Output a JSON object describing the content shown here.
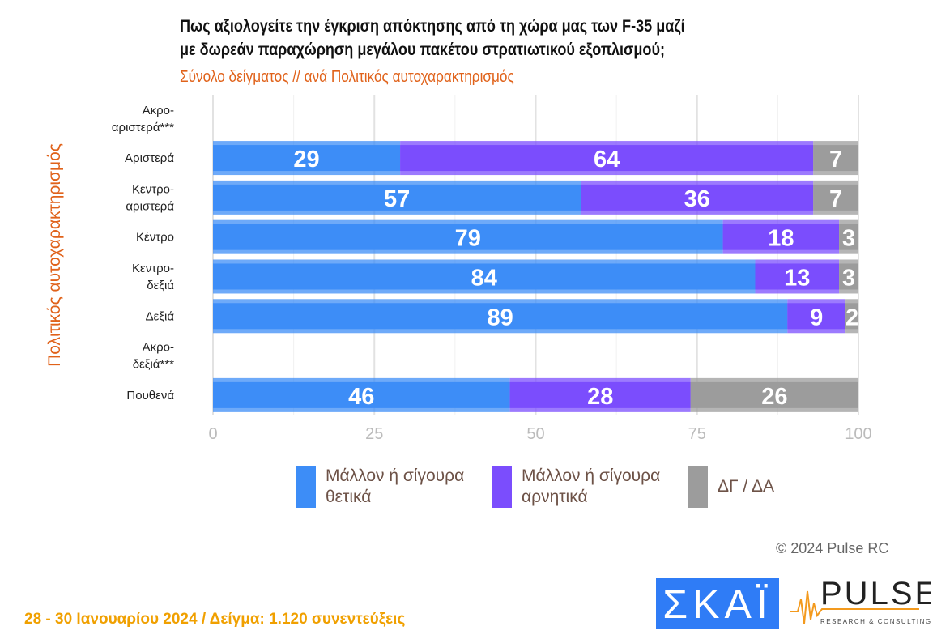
{
  "title_lines": [
    "Πως αξιολογείτε την έγκριση απόκτησης από τη χώρα μας των F-35 μαζί",
    "με δωρεάν παραχώρηση μεγάλου πακέτου στρατιωτικού εξοπλισμού;"
  ],
  "subtitle": "Σύνολο δείγματος // ανά Πολιτικός αυτοχαρακτηρισμός",
  "footer": "28 - 30  Ιανουαρίου  2024  /  Δείγμα:  1.120 συνεντεύξεις",
  "copyright": "© 2024 Pulse RC",
  "logos": {
    "skai": "ΣΚΑΪ",
    "pulse": "PULSE",
    "pulse_sub": "RESEARCH & CONSULTING"
  },
  "chart_data": {
    "type": "bar",
    "orientation": "horizontal",
    "stacked": true,
    "ylabel": "Πολιτικός αυτοχαρακτηρισμός",
    "xlim": [
      0,
      100
    ],
    "xticks": [
      "0",
      "25",
      "50",
      "75",
      "100"
    ],
    "grid": true,
    "legend_position": "bottom",
    "categories": [
      [
        "Ακρο-",
        "αριστερά***"
      ],
      [
        "Αριστερά"
      ],
      [
        "Κεντρο-",
        "αριστερά"
      ],
      [
        "Κέντρο"
      ],
      [
        "Κεντρο-",
        "δεξιά"
      ],
      [
        "Δεξιά"
      ],
      [
        "Ακρο-",
        "δεξιά***"
      ],
      [
        "Πουθενά"
      ]
    ],
    "series": [
      {
        "name": "Μάλλον ή σίγουρα θετικά",
        "legend_lines": [
          "Μάλλον ή σίγουρα",
          "θετικά"
        ],
        "color": "#3d8df7",
        "values": [
          null,
          29,
          57,
          79,
          84,
          89,
          null,
          46
        ]
      },
      {
        "name": "Μάλλον ή σίγουρα αρνητικά",
        "legend_lines": [
          "Μάλλον ή σίγουρα",
          "αρνητικά"
        ],
        "color": "#7b4dfd",
        "values": [
          null,
          64,
          36,
          18,
          13,
          9,
          null,
          28
        ]
      },
      {
        "name": "ΔΓ / ΔΑ",
        "legend_lines": [
          "ΔΓ / ΔΑ"
        ],
        "color": "#9c9c9c",
        "values": [
          null,
          7,
          7,
          3,
          3,
          2,
          null,
          26
        ]
      }
    ]
  }
}
